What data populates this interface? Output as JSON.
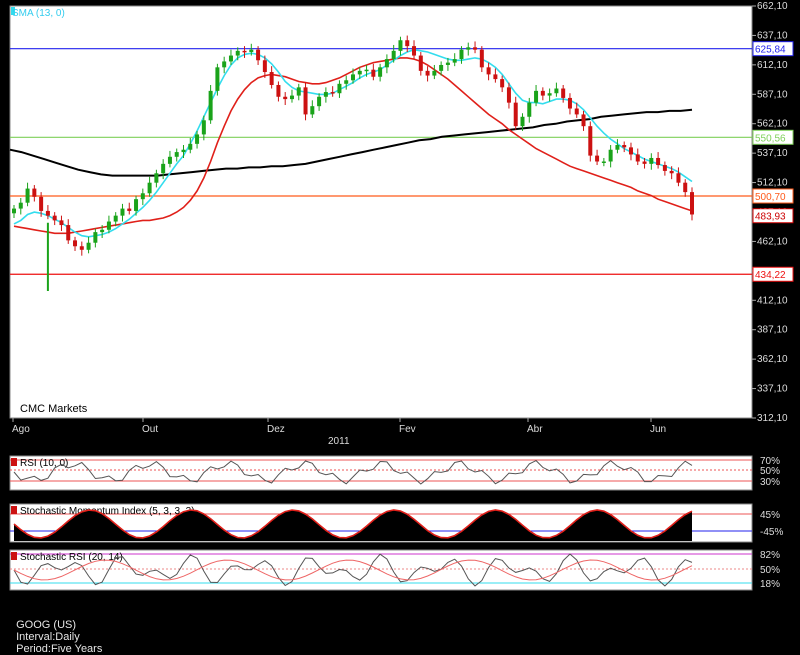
{
  "chart_data": {
    "type": "candlestick",
    "symbol": "GOOG (US)",
    "source_label": "CMC Markets",
    "x_labels": [
      "Ago",
      "Out",
      "Dez",
      "Fev",
      "Abr",
      "Jun"
    ],
    "year_label": "2011",
    "ylim": [
      312.1,
      662.1
    ],
    "y_ticks": [
      662.1,
      637.1,
      612.1,
      587.1,
      562.1,
      537.1,
      512.1,
      487.1,
      462.1,
      437.1,
      412.1,
      387.1,
      362.1,
      337.1,
      312.1
    ],
    "y_tick_labels": [
      "662,10",
      "637,10",
      "612,10",
      "587,10",
      "562,10",
      "537,10",
      "512,10",
      "487,10",
      "462,10",
      "437,10",
      "412,10",
      "387,10",
      "362,10",
      "337,10",
      "312,10"
    ],
    "sma_label": "SMA (13, 0)",
    "horizontal_lines": [
      {
        "value": 625.84,
        "label": "625,84",
        "color": "#2222ee"
      },
      {
        "value": 550.56,
        "label": "550,56",
        "color": "#7fd05a"
      },
      {
        "value": 500.7,
        "label": "500,70",
        "color": "#ff5a1a"
      },
      {
        "value": 434.22,
        "label": "434,22",
        "color": "#ee1111"
      }
    ],
    "last_price": {
      "value": 483.93,
      "label": "483,93",
      "color": "#cc0000"
    },
    "close": [
      490,
      495,
      507,
      500,
      488,
      484,
      480,
      476,
      463,
      458,
      455,
      461,
      470,
      472,
      479,
      484,
      490,
      488,
      498,
      503,
      512,
      520,
      528,
      534,
      538,
      540,
      545,
      553,
      565,
      590,
      610,
      615,
      620,
      624,
      623,
      625,
      616,
      606,
      595,
      585,
      583,
      586,
      593,
      570,
      577,
      585,
      589,
      588,
      596,
      599,
      604,
      607,
      608,
      602,
      610,
      617,
      624,
      633,
      628,
      620,
      607,
      603,
      607,
      612,
      614,
      617,
      625,
      627,
      625,
      610,
      604,
      600,
      593,
      580,
      560,
      568,
      580,
      590,
      586,
      588,
      592,
      584,
      575,
      570,
      560,
      535,
      530,
      530,
      540,
      544,
      542,
      536,
      530,
      528,
      533,
      527,
      522,
      520,
      512,
      504,
      485
    ],
    "sma13": [
      477,
      480,
      485,
      487,
      486,
      484,
      481,
      478,
      474,
      470,
      467,
      466,
      467,
      468,
      470,
      473,
      477,
      481,
      486,
      491,
      497,
      504,
      512,
      520,
      528,
      535,
      545,
      556,
      568,
      580,
      592,
      603,
      612,
      618,
      621,
      622,
      621,
      618,
      613,
      606,
      598,
      593,
      590,
      589,
      588,
      587,
      587,
      588,
      591,
      594,
      597,
      601,
      604,
      606,
      608,
      612,
      616,
      620,
      623,
      625,
      624,
      623,
      621,
      619,
      617,
      616,
      616,
      617,
      618,
      617,
      614,
      610,
      604,
      596,
      588,
      582,
      580,
      580,
      579,
      581,
      583,
      583,
      582,
      579,
      574,
      567,
      560,
      554,
      549,
      545,
      541,
      538,
      535,
      532,
      530,
      528,
      526,
      524,
      521,
      517,
      513
    ],
    "sma_red": [
      475,
      474,
      473,
      472,
      471,
      470,
      469,
      469,
      469,
      470,
      471,
      472,
      473,
      474,
      475,
      476,
      477,
      478,
      479,
      480,
      480,
      481,
      482,
      484,
      487,
      491,
      497,
      505,
      516,
      530,
      546,
      560,
      573,
      583,
      591,
      597,
      601,
      603,
      604,
      603,
      602,
      600,
      598,
      597,
      596,
      596,
      597,
      599,
      601,
      604,
      607,
      610,
      612,
      614,
      615,
      616,
      617,
      618,
      618,
      617,
      615,
      612,
      608,
      604,
      600,
      595,
      590,
      585,
      580,
      575,
      570,
      566,
      562,
      557,
      553,
      549,
      545,
      541,
      538,
      535,
      532,
      529,
      526,
      524,
      522,
      520,
      518,
      516,
      514,
      512,
      510,
      508,
      505,
      503,
      501,
      498,
      496,
      494,
      492,
      490,
      488
    ],
    "sma_long": [
      540,
      538,
      535,
      532,
      529,
      526,
      523,
      521,
      519,
      518,
      518,
      518,
      518,
      518,
      519,
      520,
      521,
      522,
      523,
      524,
      524,
      525,
      525,
      526,
      526,
      527,
      528,
      530,
      532,
      534,
      536,
      538,
      540,
      542,
      544,
      546,
      548,
      549,
      551,
      552,
      553,
      554,
      555,
      556,
      557,
      558,
      559,
      561,
      562,
      564,
      565,
      566,
      568,
      569,
      570,
      571,
      572,
      572,
      573,
      573,
      574
    ],
    "indicators": [
      {
        "label": "RSI (10, 0)",
        "levels": [
          "70%",
          "50%",
          "30%"
        ]
      },
      {
        "label": "Stochastic Momentum Index (5, 3, 3, 3)",
        "levels": [
          "45%",
          "-45%"
        ]
      },
      {
        "label": "Stochastic RSI (20, 14)",
        "levels": [
          "82%",
          "50%",
          "18%"
        ]
      }
    ]
  },
  "footer": {
    "symbol": "GOOG (US)",
    "interval": "Interval:Daily",
    "period": "Period:Five Years"
  }
}
